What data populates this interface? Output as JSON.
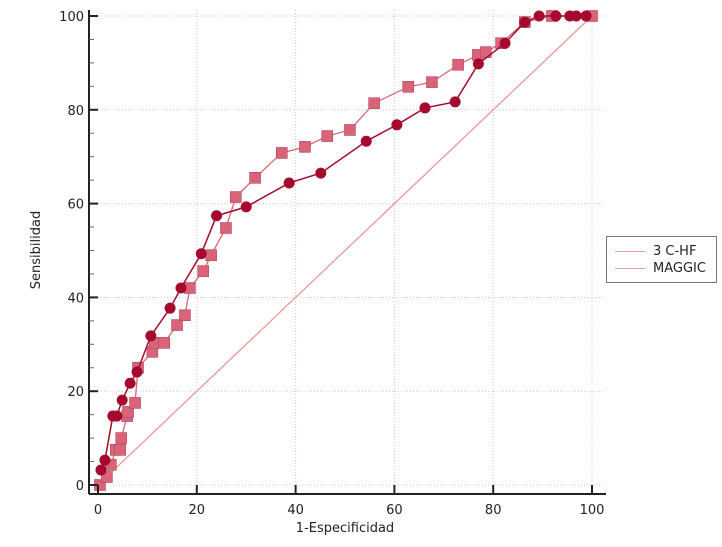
{
  "chart_data": {
    "type": "line",
    "title": "",
    "xlabel": "1-Especificidad",
    "ylabel": "Sensibilidad",
    "xlim": [
      0,
      100
    ],
    "ylim": [
      0,
      100
    ],
    "x_ticks": [
      "0",
      "20",
      "40",
      "60",
      "80",
      "100"
    ],
    "y_ticks": [
      "0",
      "20",
      "40",
      "60",
      "80",
      "100"
    ],
    "grid": true,
    "legend_position": "right",
    "reference_line": {
      "x": [
        0,
        100
      ],
      "y": [
        0,
        100
      ],
      "color": "#e89a9a"
    },
    "series": [
      {
        "name": "3 C-HF",
        "marker": "circle",
        "color": "#a50a2e",
        "x": [
          0.6,
          1.4,
          3.0,
          3.8,
          4.9,
          6.5,
          7.9,
          10.7,
          14.6,
          16.8,
          20.9,
          24.0,
          30.0,
          38.7,
          45.1,
          54.3,
          60.5,
          66.2,
          72.3,
          77.0,
          82.4,
          86.4,
          89.3,
          92.7,
          95.5,
          96.8,
          98.8
        ],
        "y": [
          3.2,
          5.3,
          14.7,
          14.7,
          18.1,
          21.7,
          24.1,
          31.8,
          37.7,
          42.0,
          49.3,
          57.4,
          59.3,
          64.4,
          66.5,
          73.3,
          76.8,
          80.4,
          81.7,
          89.8,
          94.2,
          98.7,
          100,
          100,
          100,
          100,
          100
        ]
      },
      {
        "name": "MAGGIC",
        "marker": "square",
        "color": "#d9647a",
        "x": [
          0.4,
          1.8,
          2.6,
          3.6,
          4.5,
          4.7,
          5.9,
          6.1,
          7.5,
          8.1,
          11.0,
          11.5,
          13.4,
          16.0,
          17.6,
          18.6,
          21.3,
          22.9,
          25.9,
          27.9,
          31.8,
          37.2,
          41.9,
          46.4,
          51.0,
          55.9,
          62.8,
          67.6,
          72.9,
          76.9,
          78.5,
          81.6,
          86.4,
          91.9,
          100
        ],
        "y": [
          0,
          1.7,
          4.3,
          7.5,
          7.5,
          10.0,
          14.7,
          15.6,
          17.5,
          25.0,
          28.4,
          30.3,
          30.3,
          34.1,
          36.2,
          42.0,
          45.6,
          49.0,
          54.8,
          61.4,
          65.5,
          70.8,
          72.1,
          74.4,
          75.7,
          81.4,
          84.9,
          85.9,
          89.6,
          91.7,
          92.3,
          94.2,
          98.7,
          100,
          100
        ]
      }
    ]
  },
  "legend": {
    "items": [
      {
        "label": "3 C-HF",
        "color": "#e8a0a8"
      },
      {
        "label": "MAGGIC",
        "color": "#e8a0a8"
      }
    ]
  }
}
